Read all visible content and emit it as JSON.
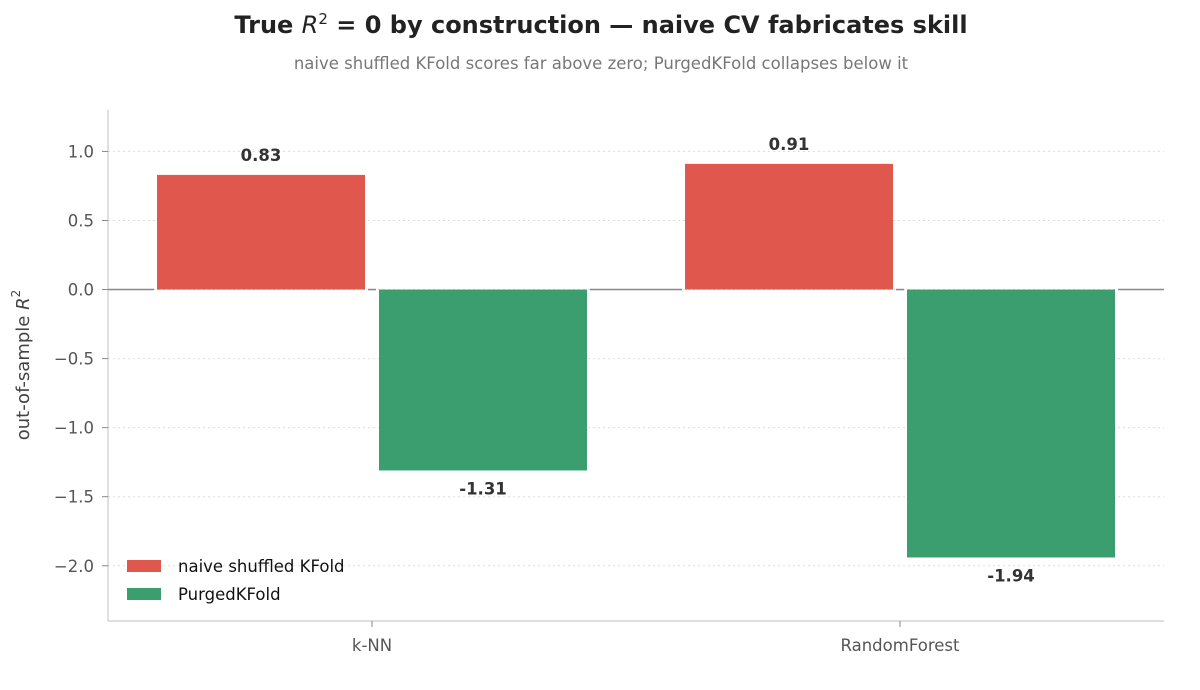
{
  "chart_data": {
    "type": "bar",
    "title": "True R² = 0 by construction — naive CV fabricates skill",
    "title_parts": {
      "prefix": "True ",
      "symbol": "R",
      "exponent": "2",
      "suffix": " = 0 by construction — naive CV fabricates skill"
    },
    "subtitle": "naive shuffled KFold scores far above zero; PurgedKFold collapses below it",
    "xlabel": "",
    "ylabel": "out-of-sample R²",
    "ylabel_parts": {
      "prefix": "out-of-sample ",
      "symbol": "R",
      "exponent": "2"
    },
    "categories": [
      "k-NN",
      "RandomForest"
    ],
    "series": [
      {
        "name": "naive shuffled KFold",
        "values": [
          0.83,
          0.91
        ],
        "labels": [
          "0.83",
          "0.91"
        ],
        "color": "#e0584d"
      },
      {
        "name": "PurgedKFold",
        "values": [
          -1.31,
          -1.94
        ],
        "labels": [
          "-1.31",
          "-1.94"
        ],
        "color": "#3a9e6f"
      }
    ],
    "ylim": [
      -2.4,
      1.3
    ],
    "yticks": [
      1.0,
      0.5,
      0.0,
      -0.5,
      -1.0,
      -1.5,
      -2.0
    ],
    "ytick_labels": [
      "1.0",
      "0.5",
      "0.0",
      "−0.5",
      "−1.0",
      "−1.5",
      "−2.0"
    ],
    "grid": "y-dotted",
    "zero_line": true,
    "legend_position": "lower-left"
  }
}
